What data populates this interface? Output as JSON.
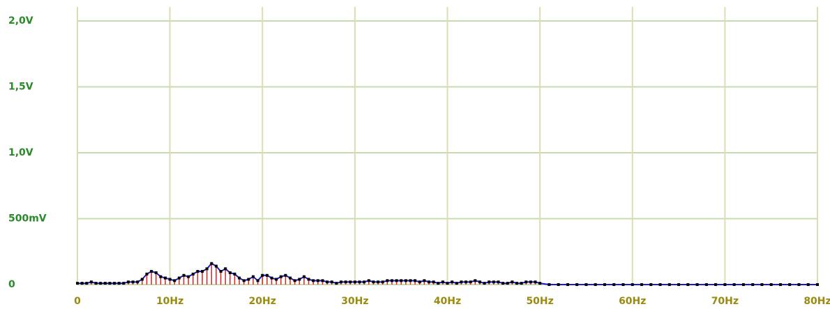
{
  "chart_data": {
    "type": "spectrum",
    "x": [
      0,
      0.5,
      1,
      1.5,
      2,
      2.5,
      3,
      3.5,
      4,
      4.5,
      5,
      5.5,
      6,
      6.5,
      7,
      7.5,
      8,
      8.5,
      9,
      9.5,
      10,
      10.5,
      11,
      11.5,
      12,
      12.5,
      13,
      13.5,
      14,
      14.5,
      15,
      15.5,
      16,
      16.5,
      17,
      17.5,
      18,
      18.5,
      19,
      19.5,
      20,
      20.5,
      21,
      21.5,
      22,
      22.5,
      23,
      23.5,
      24,
      24.5,
      25,
      25.5,
      26,
      26.5,
      27,
      27.5,
      28,
      28.5,
      29,
      29.5,
      30,
      30.5,
      31,
      31.5,
      32,
      32.5,
      33,
      33.5,
      34,
      34.5,
      35,
      35.5,
      36,
      36.5,
      37,
      37.5,
      38,
      38.5,
      39,
      39.5,
      40,
      40.5,
      41,
      41.5,
      42,
      42.5,
      43,
      43.5,
      44,
      44.5,
      45,
      45.5,
      46,
      46.5,
      47,
      47.5,
      48,
      48.5,
      49,
      49.5,
      50,
      51,
      52,
      53,
      54,
      55,
      56,
      57,
      58,
      59,
      60,
      61,
      62,
      63,
      64,
      65,
      66,
      67,
      68,
      69,
      70,
      71,
      72,
      73,
      74,
      75,
      76,
      77,
      78,
      79,
      80
    ],
    "values": [
      0.01,
      0.01,
      0.01,
      0.02,
      0.01,
      0.01,
      0.01,
      0.01,
      0.01,
      0.01,
      0.01,
      0.02,
      0.02,
      0.02,
      0.04,
      0.08,
      0.1,
      0.09,
      0.06,
      0.05,
      0.04,
      0.03,
      0.05,
      0.07,
      0.06,
      0.08,
      0.1,
      0.1,
      0.12,
      0.16,
      0.14,
      0.1,
      0.12,
      0.09,
      0.08,
      0.05,
      0.03,
      0.04,
      0.06,
      0.03,
      0.07,
      0.07,
      0.05,
      0.04,
      0.06,
      0.07,
      0.05,
      0.03,
      0.04,
      0.06,
      0.04,
      0.03,
      0.03,
      0.03,
      0.02,
      0.02,
      0.01,
      0.02,
      0.02,
      0.02,
      0.02,
      0.02,
      0.02,
      0.03,
      0.02,
      0.02,
      0.02,
      0.03,
      0.03,
      0.03,
      0.03,
      0.03,
      0.03,
      0.03,
      0.02,
      0.03,
      0.02,
      0.02,
      0.01,
      0.02,
      0.01,
      0.02,
      0.01,
      0.02,
      0.02,
      0.02,
      0.03,
      0.02,
      0.01,
      0.02,
      0.02,
      0.02,
      0.01,
      0.01,
      0.02,
      0.01,
      0.01,
      0.02,
      0.02,
      0.02,
      0.01,
      0,
      0,
      0,
      0,
      0,
      0,
      0,
      0,
      0,
      0,
      0,
      0,
      0,
      0,
      0,
      0,
      0,
      0,
      0,
      0,
      0,
      0,
      0,
      0,
      0,
      0,
      0,
      0,
      0,
      0
    ],
    "stem_color": "#e02020",
    "line_color": "#1a1ad0",
    "dot_color": "#000000",
    "xlim": [
      0,
      80
    ],
    "xticks": [
      0,
      {
        "value": 10,
        "label": "10Hz"
      },
      {
        "value": 20,
        "label": "20Hz"
      },
      {
        "value": 30,
        "label": "30Hz"
      },
      {
        "value": 40,
        "label": "40Hz"
      },
      {
        "value": 50,
        "label": "50Hz"
      },
      {
        "value": 60,
        "label": "60Hz"
      },
      {
        "value": 70,
        "label": "70Hz"
      },
      {
        "value": 80,
        "label": "80Hz"
      }
    ],
    "ylim": [
      0,
      2
    ],
    "yticks": [
      0,
      {
        "value": 0.5,
        "label": "500mV"
      },
      {
        "value": 1,
        "label": "1,0V"
      },
      {
        "value": 1.5,
        "label": "1,5V"
      },
      {
        "value": 2,
        "label": "2,0V"
      }
    ],
    "grid": true
  }
}
